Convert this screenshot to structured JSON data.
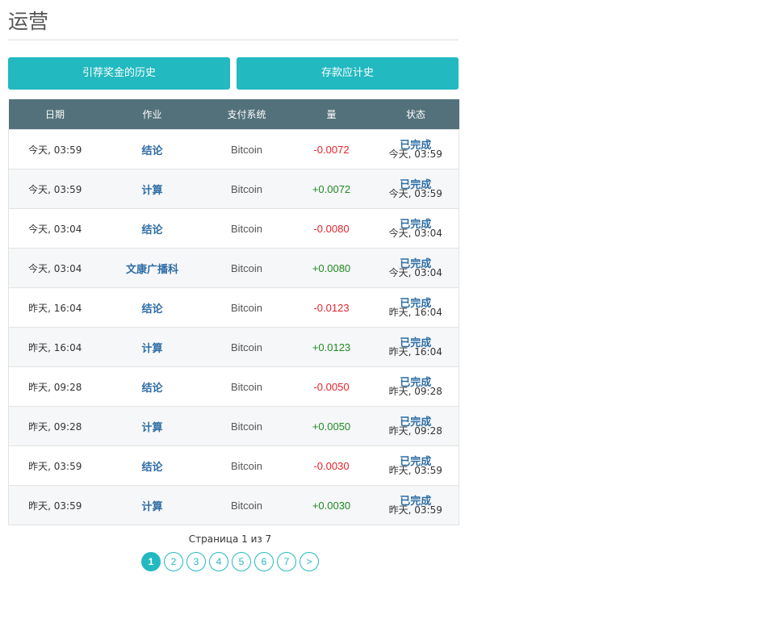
{
  "page_title": "运营",
  "buttons": {
    "referral_history": "引荐奖金的历史",
    "deposit_history": "存款应计史"
  },
  "table": {
    "headers": [
      "日期",
      "作业",
      "支付系统",
      "量",
      "状态"
    ],
    "rows": [
      {
        "date": "今天, 03:59",
        "operation": "结论",
        "system": "Bitcoin",
        "amount": "-0.0072",
        "sign": "neg",
        "status": "已完成",
        "status_time": "今天, 03:59"
      },
      {
        "date": "今天, 03:59",
        "operation": "计算",
        "system": "Bitcoin",
        "amount": "+0.0072",
        "sign": "pos",
        "status": "已完成",
        "status_time": "今天, 03:59"
      },
      {
        "date": "今天, 03:04",
        "operation": "结论",
        "system": "Bitcoin",
        "amount": "-0.0080",
        "sign": "neg",
        "status": "已完成",
        "status_time": "今天, 03:04"
      },
      {
        "date": "今天, 03:04",
        "operation": "文康广播科",
        "system": "Bitcoin",
        "amount": "+0.0080",
        "sign": "pos",
        "status": "已完成",
        "status_time": "今天, 03:04"
      },
      {
        "date": "昨天, 16:04",
        "operation": "结论",
        "system": "Bitcoin",
        "amount": "-0.0123",
        "sign": "neg",
        "status": "已完成",
        "status_time": "昨天, 16:04"
      },
      {
        "date": "昨天, 16:04",
        "operation": "计算",
        "system": "Bitcoin",
        "amount": "+0.0123",
        "sign": "pos",
        "status": "已完成",
        "status_time": "昨天, 16:04"
      },
      {
        "date": "昨天, 09:28",
        "operation": "结论",
        "system": "Bitcoin",
        "amount": "-0.0050",
        "sign": "neg",
        "status": "已完成",
        "status_time": "昨天, 09:28"
      },
      {
        "date": "昨天, 09:28",
        "operation": "计算",
        "system": "Bitcoin",
        "amount": "+0.0050",
        "sign": "pos",
        "status": "已完成",
        "status_time": "昨天, 09:28"
      },
      {
        "date": "昨天, 03:59",
        "operation": "结论",
        "system": "Bitcoin",
        "amount": "-0.0030",
        "sign": "neg",
        "status": "已完成",
        "status_time": "昨天, 03:59"
      },
      {
        "date": "昨天, 03:59",
        "operation": "计算",
        "system": "Bitcoin",
        "amount": "+0.0030",
        "sign": "pos",
        "status": "已完成",
        "status_time": "昨天, 03:59"
      }
    ]
  },
  "pagination": {
    "label": "Страница 1 из 7",
    "pages": [
      "1",
      "2",
      "3",
      "4",
      "5",
      "6",
      "7"
    ],
    "current": "1",
    "next_label": ">"
  },
  "colors": {
    "accent": "#22b9c0",
    "table_header": "#53717a",
    "link": "#2e6da4",
    "negative": "#e2252c",
    "positive": "#1f8a1f"
  }
}
